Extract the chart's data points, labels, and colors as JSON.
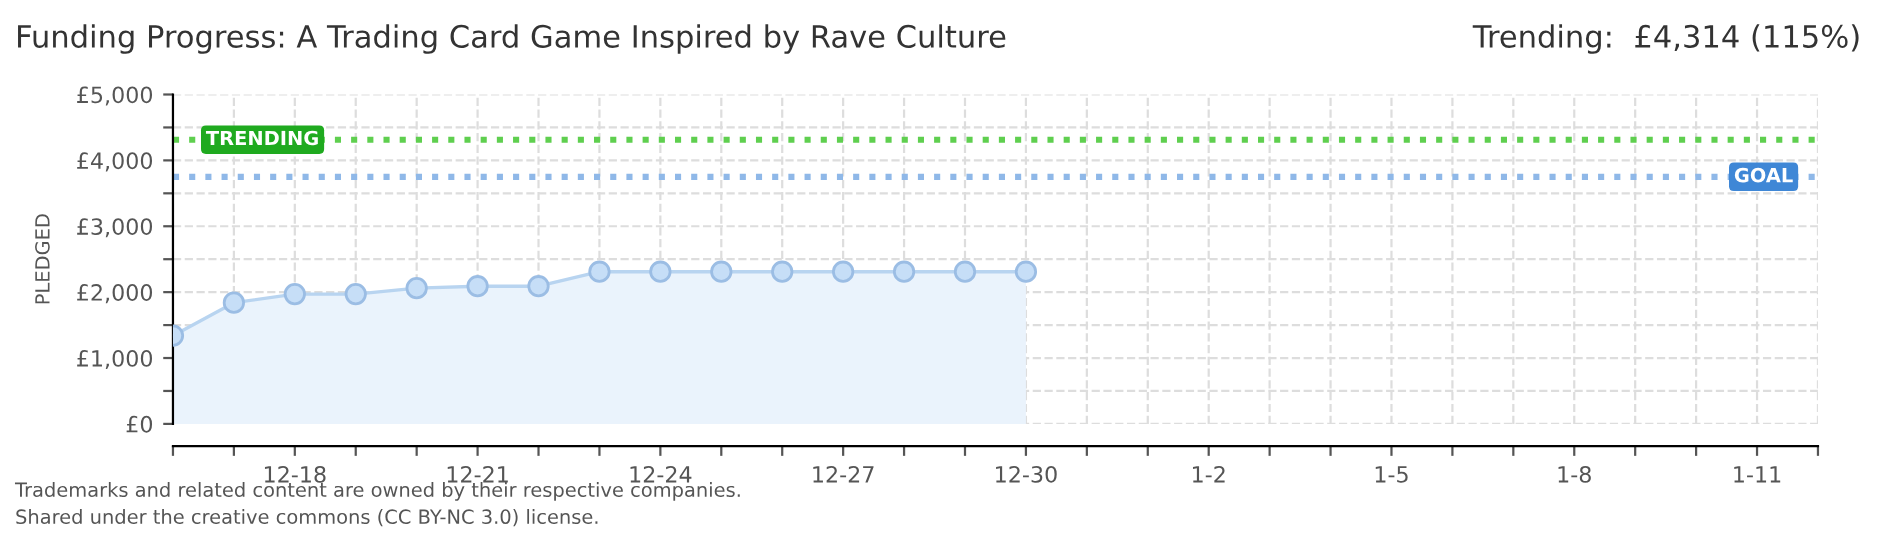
{
  "chart_data": {
    "type": "area",
    "title": "Funding Progress: A Trading Card Game Inspired by Rave Culture",
    "subtitle": "Trending:  £4,314 (115%)",
    "ylabel": "PLEDGED",
    "categories": [
      null,
      null,
      "12-18",
      null,
      null,
      "12-21",
      null,
      null,
      "12-24",
      null,
      null,
      "12-27",
      null,
      null,
      "12-30",
      null,
      null,
      "1-2",
      null,
      null,
      "1-5",
      null,
      null,
      "1-8",
      null,
      null,
      "1-11",
      null
    ],
    "series": [
      {
        "color": "#b8d4f0",
        "values": [
          1340,
          1840,
          1970,
          1970,
          2060,
          2090,
          2090,
          2310,
          2310,
          2310,
          2310,
          2310,
          2310,
          2310,
          2310,
          null,
          null,
          null,
          null,
          null,
          null,
          null,
          null,
          null,
          null,
          null,
          null,
          null
        ]
      }
    ],
    "marker": "circle",
    "ylim": [
      0,
      5000
    ],
    "yticks": [
      {
        "value": 0,
        "label": "£0"
      },
      {
        "value": 500,
        "label": null
      },
      {
        "value": 1000,
        "label": "£1,000"
      },
      {
        "value": 1500,
        "label": null
      },
      {
        "value": 2000,
        "label": "£2,000"
      },
      {
        "value": 2500,
        "label": null
      },
      {
        "value": 3000,
        "label": "£3,000"
      },
      {
        "value": 3500,
        "label": null
      },
      {
        "value": 4000,
        "label": "£4,000"
      },
      {
        "value": 4500,
        "label": null
      },
      {
        "value": 5000,
        "label": "£5,000"
      }
    ],
    "ref_lines": [
      {
        "axis": "y",
        "value": 4314,
        "label": "TRENDING",
        "color": "#5fcf4f",
        "line_style": "dotted"
      },
      {
        "axis": "y",
        "value": 3750,
        "label": "GOAL",
        "color": "#8fb8e8",
        "line_style": "dotted"
      }
    ],
    "grid": true,
    "annotations": [
      "Trademarks and related content are owned by their respective companies.",
      "Shared under the creative commons (CC BY-NC 3.0) license."
    ]
  }
}
